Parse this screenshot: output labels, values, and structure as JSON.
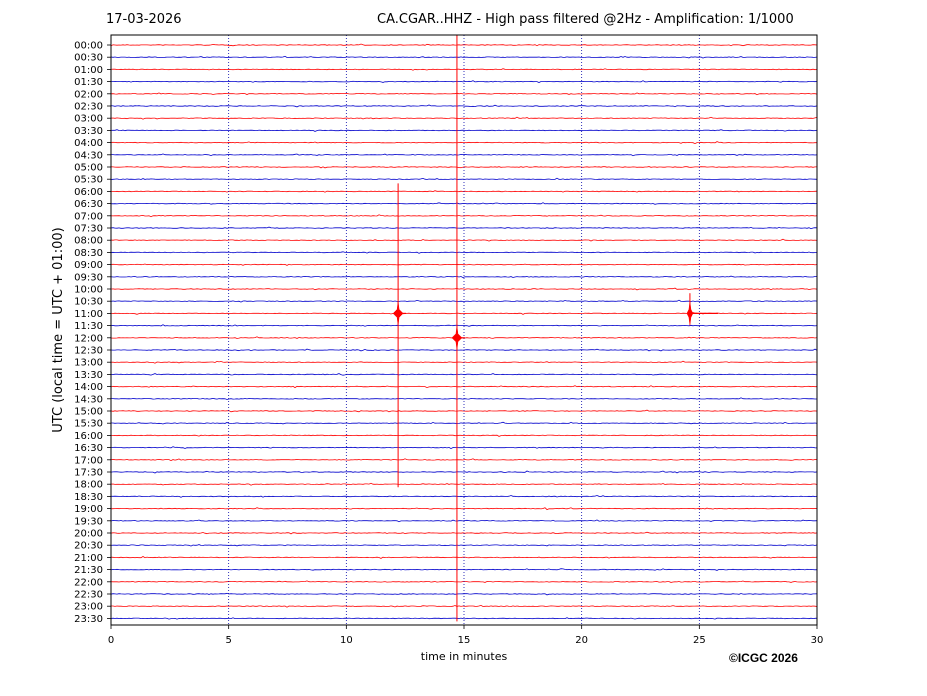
{
  "header": {
    "date": "17-03-2026",
    "title": "CA.CGAR..HHZ - High pass filtered @2Hz - Amplification: 1/1000"
  },
  "footer": {
    "copyright": "©ICGC 2026"
  },
  "chart_data": {
    "type": "line",
    "title": "CA.CGAR..HHZ - High pass filtered @2Hz - Amplification: 1/1000",
    "date": "17-03-2026",
    "xlabel": "time in minutes",
    "ylabel": "UTC (local time = UTC + 01:00)",
    "xlim": [
      0,
      30
    ],
    "x_ticks": [
      0,
      5,
      10,
      15,
      20,
      25,
      30
    ],
    "vertical_gridlines_at": [
      5,
      10,
      15,
      20,
      25
    ],
    "grid": "dotted vertical lines",
    "y_tick_labels": [
      "00:00",
      "00:30",
      "01:00",
      "01:30",
      "02:00",
      "02:30",
      "03:00",
      "03:30",
      "04:00",
      "04:30",
      "05:00",
      "05:30",
      "06:00",
      "06:30",
      "07:00",
      "07:30",
      "08:00",
      "08:30",
      "09:00",
      "09:30",
      "10:00",
      "10:30",
      "11:00",
      "11:30",
      "12:00",
      "12:30",
      "13:00",
      "13:30",
      "14:00",
      "14:30",
      "15:00",
      "15:30",
      "16:00",
      "16:30",
      "17:00",
      "17:30",
      "18:00",
      "18:30",
      "19:00",
      "19:30",
      "20:00",
      "20:30",
      "21:00",
      "21:30",
      "22:00",
      "22:30",
      "23:00",
      "23:30"
    ],
    "trace_colors": [
      "#ff0000",
      "#0000cc"
    ],
    "events": [
      {
        "minute": 12.2,
        "peak_row": "11:00",
        "span_rows": [
          "06:00",
          "18:00"
        ]
      },
      {
        "minute": 14.7,
        "peak_row": "12:00",
        "span_rows": [
          "00:00",
          "23:30"
        ]
      },
      {
        "minute": 24.6,
        "peak_row": "11:00",
        "span_rows": [
          "10:30",
          "11:00"
        ]
      }
    ]
  }
}
